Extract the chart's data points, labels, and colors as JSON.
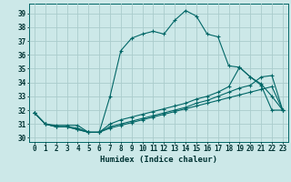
{
  "xlabel": "Humidex (Indice chaleur)",
  "background_color": "#cce8e8",
  "grid_color": "#aacccc",
  "line_color": "#006666",
  "xlim": [
    -0.5,
    23.5
  ],
  "ylim": [
    29.7,
    39.7
  ],
  "xticks": [
    0,
    1,
    2,
    3,
    4,
    5,
    6,
    7,
    8,
    9,
    10,
    11,
    12,
    13,
    14,
    15,
    16,
    17,
    18,
    19,
    20,
    21,
    22,
    23
  ],
  "yticks": [
    30,
    31,
    32,
    33,
    34,
    35,
    36,
    37,
    38,
    39
  ],
  "line1_x": [
    0,
    1,
    2,
    3,
    4,
    5,
    6,
    7,
    8,
    9,
    10,
    11,
    12,
    13,
    14,
    15,
    16,
    17,
    18,
    19,
    20,
    21,
    22,
    23
  ],
  "line1_y": [
    31.8,
    31.0,
    30.9,
    30.9,
    30.9,
    30.4,
    30.4,
    33.0,
    36.3,
    37.2,
    37.5,
    37.7,
    37.5,
    38.5,
    39.2,
    38.8,
    37.5,
    37.3,
    35.2,
    35.1,
    34.4,
    33.8,
    32.0,
    32.0
  ],
  "line2_x": [
    0,
    1,
    2,
    3,
    4,
    5,
    6,
    7,
    8,
    9,
    10,
    11,
    12,
    13,
    14,
    15,
    16,
    17,
    18,
    19,
    20,
    21,
    22,
    23
  ],
  "line2_y": [
    31.8,
    31.0,
    30.8,
    30.8,
    30.7,
    30.4,
    30.4,
    31.0,
    31.3,
    31.5,
    31.7,
    31.9,
    32.1,
    32.3,
    32.5,
    32.8,
    33.0,
    33.3,
    33.7,
    35.1,
    34.4,
    33.9,
    33.0,
    32.0
  ],
  "line3_x": [
    0,
    1,
    2,
    3,
    4,
    5,
    6,
    7,
    8,
    9,
    10,
    11,
    12,
    13,
    14,
    15,
    16,
    17,
    18,
    19,
    20,
    21,
    22,
    23
  ],
  "line3_y": [
    31.8,
    31.0,
    30.8,
    30.8,
    30.6,
    30.4,
    30.4,
    30.8,
    31.0,
    31.2,
    31.4,
    31.6,
    31.8,
    32.0,
    32.2,
    32.5,
    32.7,
    33.0,
    33.3,
    33.6,
    33.8,
    34.4,
    34.5,
    32.0
  ],
  "line4_x": [
    0,
    1,
    2,
    3,
    4,
    5,
    6,
    7,
    8,
    9,
    10,
    11,
    12,
    13,
    14,
    15,
    16,
    17,
    18,
    19,
    20,
    21,
    22,
    23
  ],
  "line4_y": [
    31.8,
    31.0,
    30.8,
    30.8,
    30.6,
    30.4,
    30.4,
    30.7,
    30.9,
    31.1,
    31.3,
    31.5,
    31.7,
    31.9,
    32.1,
    32.3,
    32.5,
    32.7,
    32.9,
    33.1,
    33.3,
    33.5,
    33.7,
    32.0
  ]
}
